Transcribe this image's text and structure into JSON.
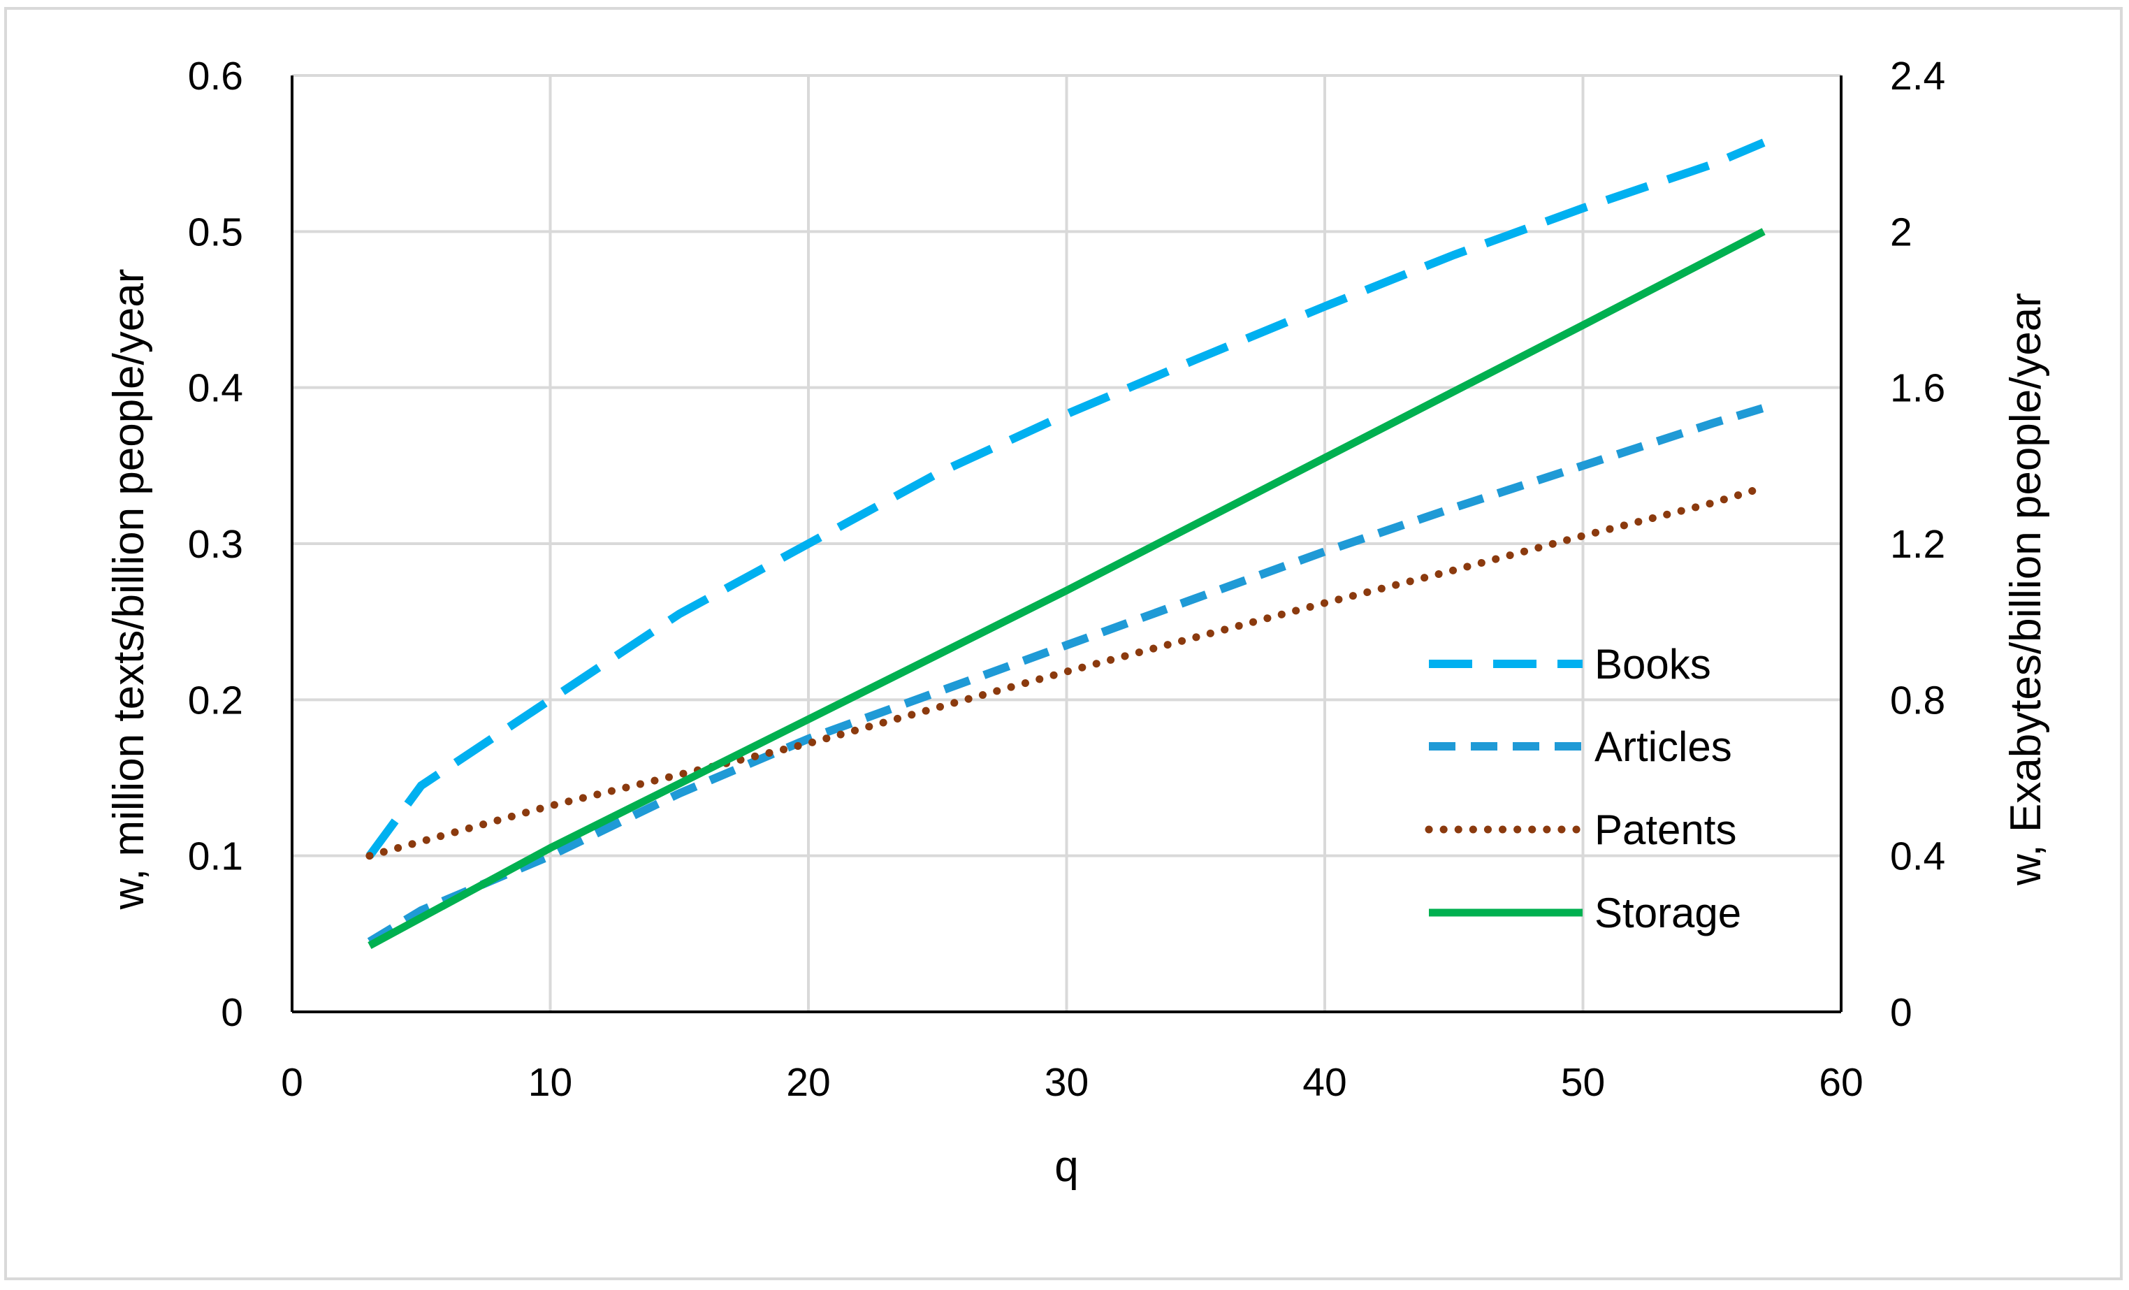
{
  "chart_data": {
    "type": "line",
    "title": "",
    "xlabel": "q",
    "ylabel_left": "w, million texts/billion people/year",
    "ylabel_right": "w, Exabytes/billion people/year",
    "xlim": [
      0,
      60
    ],
    "ylim_left": [
      0,
      0.6
    ],
    "ylim_right": [
      0,
      2.4
    ],
    "x_ticks": [
      "0",
      "10",
      "20",
      "30",
      "40",
      "50",
      "60"
    ],
    "y_left_ticks": [
      "0",
      "0.1",
      "0.2",
      "0.3",
      "0.4",
      "0.5",
      "0.6"
    ],
    "y_right_ticks": [
      "0",
      "0.4",
      "0.8",
      "1.2",
      "1.6",
      "2",
      "2.4"
    ],
    "grid": true,
    "legend_position": "right-center",
    "series": [
      {
        "name": "Books",
        "axis": "left",
        "color": "#00b0f0",
        "style": "long-dash",
        "x": [
          3,
          5,
          10,
          15,
          20,
          25,
          30,
          35,
          40,
          45,
          50,
          55,
          57
        ],
        "y": [
          0.1,
          0.145,
          0.2,
          0.255,
          0.3,
          0.345,
          0.383,
          0.418,
          0.452,
          0.485,
          0.515,
          0.543,
          0.557
        ]
      },
      {
        "name": "Articles",
        "axis": "left",
        "color": "#1f9ad6",
        "style": "dash",
        "x": [
          3,
          5,
          10,
          15,
          20,
          25,
          30,
          35,
          40,
          45,
          50,
          55,
          57
        ],
        "y": [
          0.045,
          0.065,
          0.1,
          0.14,
          0.175,
          0.205,
          0.235,
          0.265,
          0.295,
          0.323,
          0.35,
          0.377,
          0.387
        ]
      },
      {
        "name": "Patents",
        "axis": "left",
        "color": "#8b3a0e",
        "style": "dotted",
        "x": [
          3,
          10,
          15,
          20,
          25,
          30,
          35,
          40,
          45,
          50,
          55,
          57
        ],
        "y": [
          0.1,
          0.132,
          0.152,
          0.172,
          0.195,
          0.218,
          0.24,
          0.262,
          0.283,
          0.305,
          0.326,
          0.336
        ]
      },
      {
        "name": "Storage",
        "axis": "right",
        "color": "#00b050",
        "style": "solid",
        "x": [
          3,
          10,
          20,
          30,
          40,
          50,
          57
        ],
        "y": [
          0.17,
          0.42,
          0.75,
          1.08,
          1.42,
          1.76,
          2.0
        ]
      }
    ]
  }
}
